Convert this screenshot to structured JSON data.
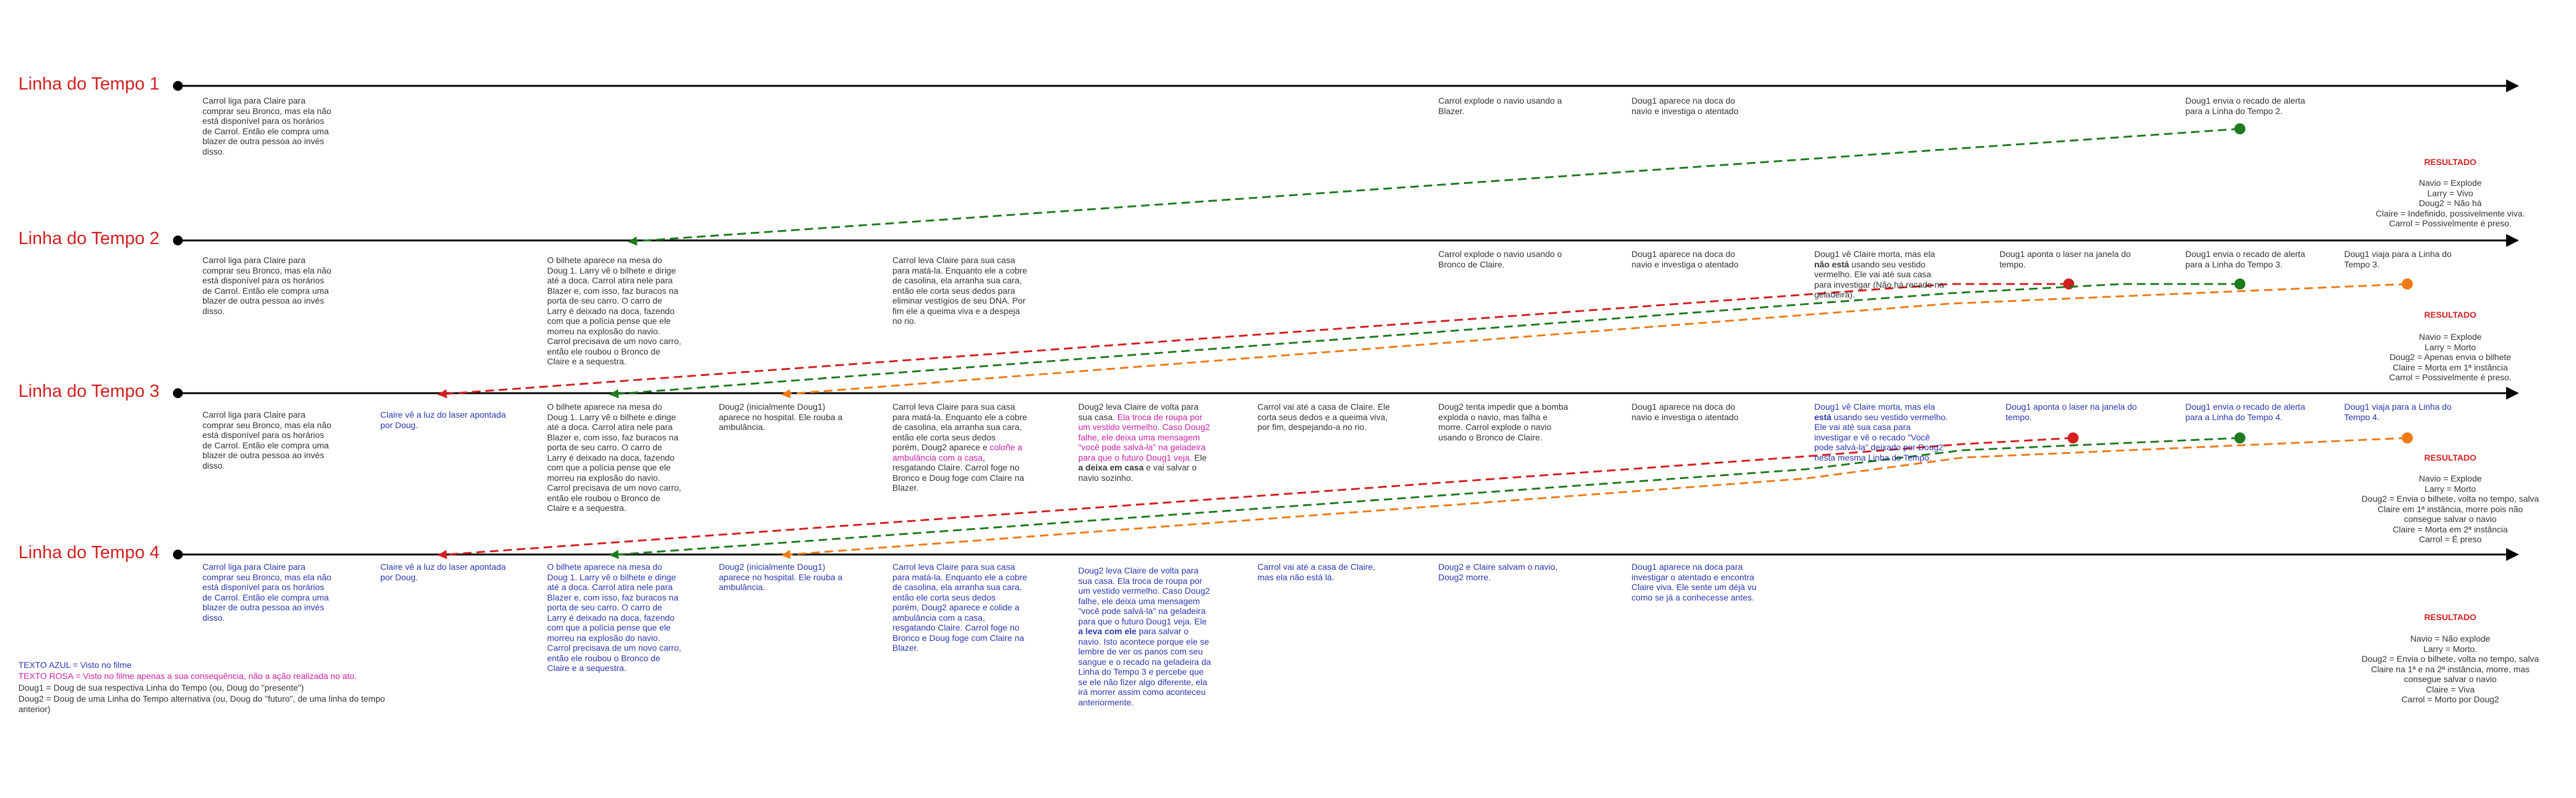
{
  "timelines": [
    {
      "title": "Linha do Tempo 1"
    },
    {
      "title": "Linha do Tempo 2"
    },
    {
      "title": "Linha do Tempo 3"
    },
    {
      "title": "Linha do Tempo 4"
    }
  ],
  "notes": {
    "t1": [
      "Carrol liga para Claire para\ncomprar seu Bronco, mas ela não\nestá disponível para os horários\nde Carrol. Então ele compra uma\nblazer de outra pessoa ao invés\ndisso.",
      "Carrol explode o navio usando a\nBlazer.",
      "Doug1 aparece na doca do\nnavio e investiga o atentado",
      "Doug1 envia o recado de alerta\npara a Linha do Tempo 2."
    ],
    "t2": [
      "Carrol liga para Claire para\ncomprar seu Bronco, mas ela não\nestá disponível para os horários\nde Carrol. Então ele compra uma\nblazer de outra pessoa ao invés\ndisso.",
      "O bilhete aparece na mesa do\nDoug 1. Larry vê o bilhete e dirige\naté a doca. Carrol atira nele para\nBlazer e, com isso, faz buracos na\nporta de seu carro. O carro de\nLarry é deixado na doca, fazendo\ncom que a polícia pense que ele\nmorreu na explosão do navio.\nCarrol precisava de um novo carro,\nentão ele roubou o Bronco de\nClaire e a sequestra.",
      "Carrol leva Claire para sua casa\npara matá-la. Enquanto ele a cobre\nde casolina, ela arranha sua cara,\nentão ele corta seus dedos para\neliminar vestígios de seu DNA. Por\nfim ele a queima viva e a despeja\nno rio.",
      "Carrol explode o navio usando o\nBronco de Claire.",
      "Doug1 aparece na doca do\nnavio e investiga o atentado",
      "Doug1 aponta o laser na janela do\ntempo.",
      "Doug1 envia o recado de alerta\npara a Linha do Tempo 3.",
      "Doug1 viaja para a Linha do\nTempo 3."
    ],
    "t2_special": {
      "a": "Doug1 vê Claire morta, mas ela",
      "b": "não está",
      "c": " usando seu vestido\nvermelho. Ele vai até sua casa\npara investigar (Não há recado na\ngeladeira)."
    },
    "t3": [
      "Carrol liga para Claire para\ncomprar seu Bronco, mas ela não\nestá disponível para os horários\nde Carrol. Então ele compra uma\nblazer de outra pessoa ao invés\ndisso.",
      "Claire vê a luz do laser apontada\npor Doug.",
      "O bilhete aparece na mesa do\nDoug 1. Larry vê o bilhete e dirige\naté a doca. Carrol atira nele para\nBlazer e, com isso, faz buracos na\nporta de seu carro. O carro de\nLarry é deixado na doca, fazendo\ncom que a polícia pense que ele\nmorreu na explosão do navio.\nCarrol precisava de um novo carro,\nentão ele roubou o Bronco de\nClaire e a sequestra.",
      "Doug2 (inicialmente Doug1)\naparece no hospital. Ele rouba a\nambulância.",
      "Carrol vai até a casa de Claire. Ele\ncorta seus dedos e a queima viva,\npor fim, despejando-a no rio.",
      "Doug2 tenta impedir que a bomba\nexploda o navio, mas falha e\nmorre. Carrol explode o navio\nusando o Bronco de Claire.",
      "Doug1 aparece na doca do\nnavio e investiga o atentado",
      "Doug1 aponta o laser na janela do\ntempo.",
      "Doug1 envia o recado de alerta\npara a Linha do Tempo 4.",
      "Doug1 viaja para a Linha do\nTempo 4."
    ],
    "t3_carrol": {
      "a": "Carrol leva Claire para sua casa\npara matá-la. Enquanto ele a cobre\nde casolina, ela arranha sua cara,\nentão ele corta seus dedos\nporém, Doug2 aparece e ",
      "p": "coloñe a\nambulância com a casa",
      "b": ",\nresgatando Claire. Carrol foge no\nBronco e Doug foge com Claire na\nBlazer."
    },
    "t3_doug": {
      "a": "Doug2 leva Claire de volta para\nsua casa. ",
      "p": "Ela troca de roupa por\num vestido vermelho. Caso Doug2\nfalhe, ele deixa uma mensagem\n\"você pode salvá-la\" na geladeira\npara que o futuro Doug1 veja.",
      "b": " Ele\n",
      "bold": "a deixa em casa",
      "c": " e vai salvar o\nnavio sozinho."
    },
    "t3_claire": {
      "a": "Doug1 vê Claire morta, mas ela\n",
      "bold": "está",
      "b": " usando seu vestido vermelho.\nEle vai até sua casa para\ninvestigar e vê o recado \"Você\npode salvá-la\" deixado por Doug2\nnesta mesma Linha do Tempo."
    },
    "t4": [
      "Carrol liga para Claire para\ncomprar seu Bronco, mas ela não\nestá disponível para os horários\nde Carrol. Então ele compra uma\nblazer de outra pessoa ao invés\ndisso.",
      "Claire vê a luz do laser apontada\npor Doug.",
      "O bilhete aparece na mesa do\nDoug 1. Larry vê o bilhete e dirige\naté a doca. Carrol atira nele para\nBlazer e, com isso, faz buracos na\nporta de seu carro. O carro de\nLarry é deixado na doca, fazendo\ncom que a polícia pense que ele\nmorreu na explosão do navio.\nCarrol precisava de um novo carro,\nentão ele roubou o Bronco de\nClaire e a sequestra.",
      "Doug2 (inicialmente Doug1)\naparece no hospital. Ele rouba a\nambulância.",
      "Carrol leva Claire para sua casa\npara matá-la. Enquanto ele a cobre\nde casolina, ela arranha sua cara,\nentão ele corta seus dedos\nporém, Doug2 aparece e colide a\nambulância com a casa,\nresgatando Claire. Carrol foge no\nBronco e Doug foge com Claire na\nBlazer.",
      "Carrol vai até a casa de Claire,\nmas ela não está lá.",
      "Doug2 e Claire salvam o navio,\nDoug2 morre.",
      "Doug1 aparece na doca para\ninvestigar o atentado e encontra\nClaire viva. Ele sente um déjà vu\ncomo se já a conhecesse antes."
    ],
    "t4_doug": {
      "a": "Doug2 leva Claire de volta para\nsua casa. Ela troca de roupa por\num vestido vermelho. Caso Doug2\nfalhe, ele deixa uma mensagem\n\"você pode salvá-la\" na geladeira\npara que o futuro Doug1 veja. Ele\n",
      "bold": "a leva com ele",
      "b": " para salvar o\nnavio. Isto acontece porque ele se\nlembre de ver os panos com seu\nsangue e o recado na geladeira da\nLinha do Tempo 3 e percebe que\nse ele não fizer algo diferente, ela\nirá morrer assim como aconteceu\nanteriormente."
    }
  },
  "results": {
    "heading": "RESULTADO",
    "items": [
      "Navio = Explode\nLarry = Vivo\nDoug2 = Não há\nClaire = Indefinido, possivelmente viva.\nCarrol = Possivelmente é preso.",
      "Navio = Explode\nLarry = Morto\nDoug2 = Apenas envia o bilhete\nClaire = Morta em 1ª instância\nCarrol = Possivelmente é preso.",
      "Navio = Explode\nLarry = Morto\nDoug2 = Envia o bilhete, volta no tempo, salva\nClaire em 1ª instância, morre pois não\nconsegue salvar o navio\nClaire = Morta em 2ª instância\nCarrol = É preso",
      "Navio = Não explode\nLarry = Morto.\nDoug2 = Envia o bilhete, volta no tempo, salva\nClaire na 1ª e na 2ª instância, morre, mas\nconsegue salvar o navio\nClaire = Viva\nCarrol = Morto por Doug2"
    ]
  },
  "legend": {
    "blue": "TEXTO AZUL = Visto no filme",
    "pink": "TEXTO ROSA = Visto no filme apenas a sua consequência, não a ação realizada no ato.",
    "doug1": "Doug1 = Doug de sua respectiva Linha do Tempo (ou, Doug do \"presente\")",
    "doug2": "Doug2 = Doug de uma Linha do Tempo alternativa (ou, Doug do \"futuro\", de uma linha do tempo\nanterior)"
  },
  "colors": {
    "title": "#d21f1f",
    "blue_text": "#2a36b0",
    "pink_text": "#cc1fa8",
    "red": "#d21f1f",
    "green": "#1e7a1e",
    "orange": "#ee7a16"
  }
}
